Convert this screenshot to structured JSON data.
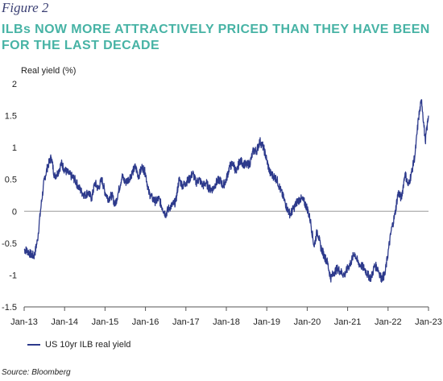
{
  "figure_label": "Figure 2",
  "source": "Source:  Bloomberg",
  "chart_data": {
    "type": "line",
    "title": "ILBs NOW MORE ATTRACTIVELY PRICED THAN THEY HAVE BEEN FOR THE LAST DECADE",
    "ylabel": "Real yield (%)",
    "xlabel": "",
    "ylim": [
      -1.5,
      2
    ],
    "yticks": [
      2,
      1.5,
      1,
      0.5,
      0,
      -0.5,
      -1,
      -1.5
    ],
    "xlim": [
      2013.0,
      2023.0
    ],
    "xticks": [
      "Jan-13",
      "Jan-14",
      "Jan-15",
      "Jan-16",
      "Jan-17",
      "Jan-18",
      "Jan-19",
      "Jan-20",
      "Jan-21",
      "Jan-22",
      "Jan-23"
    ],
    "grid": false,
    "legend_placement": "bottom-left",
    "line_color": "#2d3a8c",
    "series": [
      {
        "name": "US 10yr ILB real yield",
        "x": [
          2013.0,
          2013.08,
          2013.17,
          2013.25,
          2013.33,
          2013.42,
          2013.5,
          2013.58,
          2013.67,
          2013.75,
          2013.83,
          2013.92,
          2014.0,
          2014.08,
          2014.17,
          2014.25,
          2014.33,
          2014.42,
          2014.5,
          2014.58,
          2014.67,
          2014.75,
          2014.83,
          2014.92,
          2015.0,
          2015.08,
          2015.17,
          2015.25,
          2015.33,
          2015.42,
          2015.5,
          2015.58,
          2015.67,
          2015.75,
          2015.83,
          2015.92,
          2016.0,
          2016.08,
          2016.17,
          2016.25,
          2016.33,
          2016.42,
          2016.5,
          2016.58,
          2016.67,
          2016.75,
          2016.83,
          2016.92,
          2017.0,
          2017.08,
          2017.17,
          2017.25,
          2017.33,
          2017.42,
          2017.5,
          2017.58,
          2017.67,
          2017.75,
          2017.83,
          2017.92,
          2018.0,
          2018.08,
          2018.17,
          2018.25,
          2018.33,
          2018.42,
          2018.5,
          2018.58,
          2018.67,
          2018.75,
          2018.83,
          2018.92,
          2019.0,
          2019.08,
          2019.17,
          2019.25,
          2019.33,
          2019.42,
          2019.5,
          2019.58,
          2019.67,
          2019.75,
          2019.83,
          2019.92,
          2020.0,
          2020.08,
          2020.17,
          2020.25,
          2020.33,
          2020.42,
          2020.5,
          2020.58,
          2020.67,
          2020.75,
          2020.83,
          2020.92,
          2021.0,
          2021.08,
          2021.17,
          2021.25,
          2021.33,
          2021.42,
          2021.5,
          2021.58,
          2021.67,
          2021.75,
          2021.83,
          2021.92,
          2022.0,
          2022.08,
          2022.17,
          2022.25,
          2022.33,
          2022.42,
          2022.5,
          2022.58,
          2022.67,
          2022.75,
          2022.83,
          2022.92,
          2023.0
        ],
        "values": [
          -0.6,
          -0.62,
          -0.68,
          -0.7,
          -0.45,
          0.1,
          0.5,
          0.7,
          0.85,
          0.55,
          0.6,
          0.75,
          0.65,
          0.6,
          0.55,
          0.5,
          0.4,
          0.3,
          0.25,
          0.3,
          0.2,
          0.45,
          0.35,
          0.5,
          0.3,
          0.2,
          0.25,
          0.1,
          0.3,
          0.55,
          0.45,
          0.5,
          0.6,
          0.7,
          0.55,
          0.7,
          0.6,
          0.3,
          0.2,
          0.15,
          0.2,
          0.05,
          -0.05,
          0.05,
          0.1,
          0.15,
          0.5,
          0.4,
          0.45,
          0.5,
          0.6,
          0.45,
          0.5,
          0.4,
          0.45,
          0.35,
          0.35,
          0.45,
          0.5,
          0.4,
          0.5,
          0.7,
          0.75,
          0.6,
          0.8,
          0.75,
          0.72,
          0.75,
          0.95,
          0.95,
          1.1,
          1.0,
          0.8,
          0.6,
          0.55,
          0.5,
          0.35,
          0.2,
          0.05,
          -0.05,
          0.05,
          0.15,
          0.2,
          0.15,
          0.05,
          -0.15,
          -0.55,
          -0.3,
          -0.55,
          -0.7,
          -0.8,
          -1.05,
          -0.95,
          -0.9,
          -0.95,
          -1.0,
          -0.9,
          -0.8,
          -0.65,
          -0.8,
          -0.85,
          -0.9,
          -1.0,
          -1.05,
          -0.85,
          -0.9,
          -1.05,
          -1.0,
          -0.65,
          -0.3,
          -0.05,
          0.3,
          0.2,
          0.6,
          0.4,
          0.6,
          0.9,
          1.45,
          1.75,
          1.1,
          1.5
        ]
      }
    ]
  }
}
